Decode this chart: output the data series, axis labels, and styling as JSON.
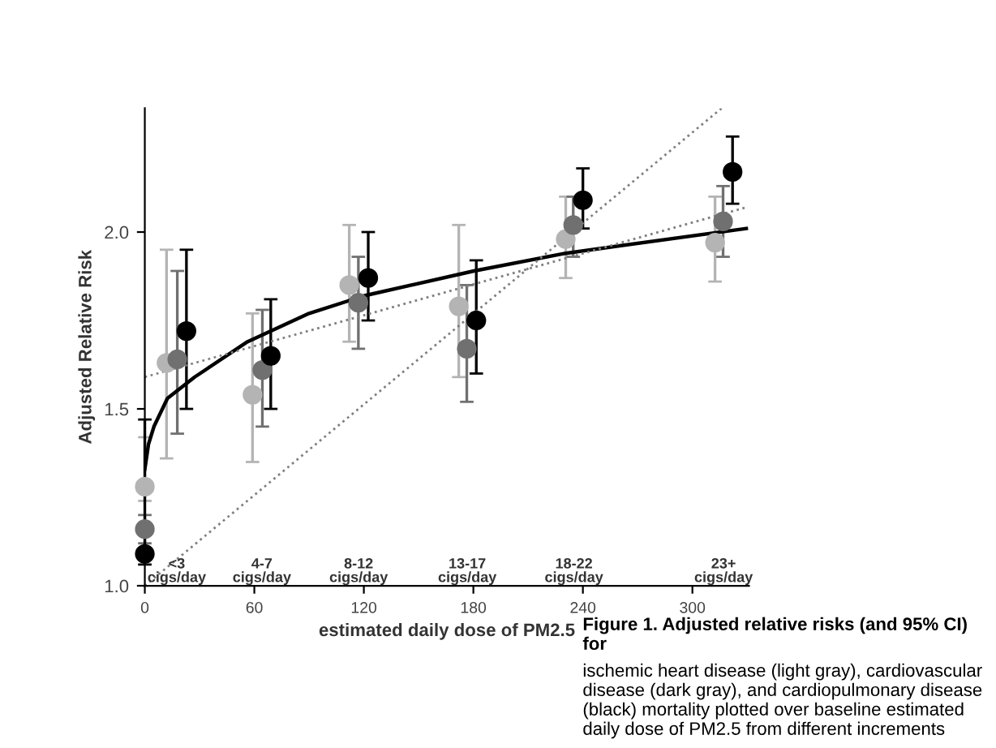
{
  "chart_data": {
    "type": "scatter",
    "xlabel": "estimated daily dose of PM2.5",
    "ylabel": "Adjusted Relative Risk",
    "xlim": [
      0,
      331
    ],
    "ylim": [
      1.0,
      2.35
    ],
    "xticks": [
      0,
      60,
      120,
      180,
      240,
      300
    ],
    "yticks": [
      {
        "value": 1.0,
        "label": "1.0"
      },
      {
        "value": 1.5,
        "label": "1.5"
      },
      {
        "value": 2.0,
        "label": "2.0"
      }
    ],
    "grid": false,
    "legend": false,
    "series": [
      {
        "marker": "circle",
        "color": "#b4b4b4",
        "x": [
          0,
          11.9,
          59,
          112,
          172,
          230.6,
          312.4
        ],
        "values": [
          1.28,
          1.63,
          1.54,
          1.85,
          1.79,
          1.98,
          1.97
        ],
        "errors": [
          [
            1.24,
            1.42
          ],
          [
            1.36,
            1.95
          ],
          [
            1.35,
            1.77
          ],
          [
            1.69,
            2.02
          ],
          [
            1.59,
            2.02
          ],
          [
            1.87,
            2.1
          ],
          [
            1.86,
            2.1
          ]
        ]
      },
      {
        "marker": "circle",
        "color": "#707070",
        "x": [
          0,
          17.8,
          64.4,
          117,
          176.4,
          234.7,
          316.8
        ],
        "values": [
          1.16,
          1.64,
          1.61,
          1.8,
          1.67,
          2.02,
          2.03
        ],
        "errors": [
          [
            1.12,
            1.2
          ],
          [
            1.43,
            1.89
          ],
          [
            1.45,
            1.78
          ],
          [
            1.67,
            1.93
          ],
          [
            1.52,
            1.85
          ],
          [
            1.93,
            2.1
          ],
          [
            1.93,
            2.13
          ]
        ]
      },
      {
        "marker": "circle",
        "color": "#000000",
        "x": [
          0,
          22.8,
          69,
          122.4,
          181.6,
          240,
          322
        ],
        "values": [
          1.09,
          1.72,
          1.65,
          1.87,
          1.75,
          2.09,
          2.17
        ],
        "errors": [
          [
            1.06,
            1.47
          ],
          [
            1.5,
            1.95
          ],
          [
            1.5,
            1.81
          ],
          [
            1.75,
            2.0
          ],
          [
            1.6,
            1.92
          ],
          [
            2.01,
            2.18
          ],
          [
            2.08,
            2.27
          ]
        ]
      },
      {
        "type": "line",
        "marker": "none",
        "color": "#000000",
        "line_style": "solid",
        "x": [
          0,
          2,
          5,
          12.4,
          27.3,
          56.3,
          90,
          120.3,
          180.3,
          230.6,
          329.5
        ],
        "values": [
          1.33,
          1.4,
          1.45,
          1.53,
          1.59,
          1.69,
          1.77,
          1.82,
          1.89,
          1.94,
          2.01
        ]
      },
      {
        "type": "line",
        "marker": "none",
        "color": "#808080",
        "line_style": "dotted",
        "x": [
          0,
          329.5
        ],
        "values": [
          1.59,
          2.07
        ]
      },
      {
        "type": "line",
        "marker": "none",
        "color": "#808080",
        "line_style": "dotted",
        "x": [
          0,
          316
        ],
        "values": [
          1.0,
          2.35
        ]
      }
    ],
    "annotations": [
      "Figure 1. Adjusted relative risks (and 95% CI) for",
      "ischemic heart disease (light gray), cardiovascular disease (dark gray), and cardiopulmonary disease (black) mortality plotted over baseline estimated daily dose of PM2.5 from different increments",
      "<3\ncigs/day",
      "4-7\ncigs/day",
      "8-12\ncigs/day",
      "13-17\ncigs/day",
      "18-22\ncigs/day",
      "23+\ncigs/day"
    ]
  }
}
